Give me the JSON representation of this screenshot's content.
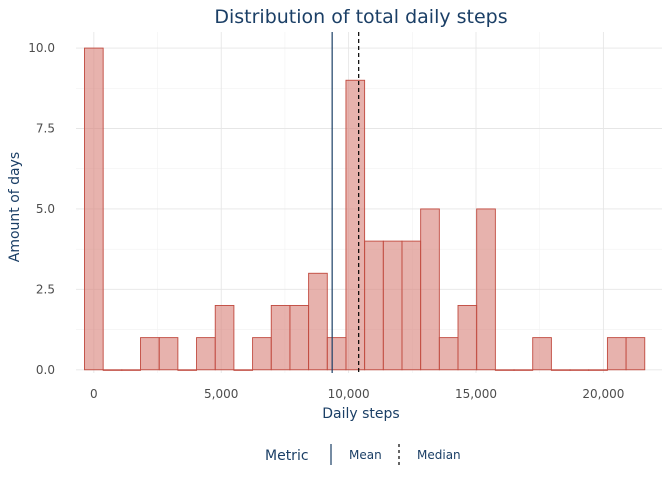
{
  "chart_data": {
    "type": "bar",
    "title": "Distribution of total daily steps",
    "xlabel": "Daily steps",
    "ylabel": "Amount of days",
    "xlim": [
      -700,
      22300
    ],
    "ylim": [
      -0.1,
      10.5
    ],
    "x_ticks": [
      0,
      5000,
      10000,
      15000,
      20000
    ],
    "x_tick_labels": [
      "0",
      "5,000",
      "10,000",
      "15,000",
      "20,000"
    ],
    "y_ticks": [
      0,
      2.5,
      5,
      7.5,
      10
    ],
    "y_tick_labels": [
      "0.0",
      "2.5",
      "5.0",
      "7.5",
      "10.0"
    ],
    "bin_width": 733,
    "bin_centers": [
      0,
      733,
      1466,
      2199,
      2932,
      3665,
      4398,
      5131,
      5864,
      6597,
      7330,
      8063,
      8796,
      9529,
      10262,
      10995,
      11728,
      12461,
      13194,
      13927,
      14660,
      15393,
      16126,
      16859,
      17592,
      18325,
      19058,
      19791,
      20524,
      21257
    ],
    "counts": [
      10,
      0,
      0,
      1,
      1,
      0,
      1,
      2,
      0,
      1,
      2,
      2,
      3,
      1,
      9,
      4,
      4,
      4,
      5,
      1,
      2,
      5,
      0,
      0,
      1,
      0,
      0,
      0,
      1,
      1
    ],
    "reference_lines": [
      {
        "name": "Mean",
        "value": 9354,
        "style": "solid",
        "color": "#1b3f66"
      },
      {
        "name": "Median",
        "value": 10395,
        "style": "dashed",
        "color": "#000000"
      }
    ],
    "legend": {
      "title": "Metric",
      "position": "bottom"
    },
    "grid": true
  },
  "colors": {
    "bar_fill": "#d9837a",
    "bar_stroke": "#c0493e",
    "text": "#1b3f66",
    "tick_text": "#4d4d4d"
  }
}
